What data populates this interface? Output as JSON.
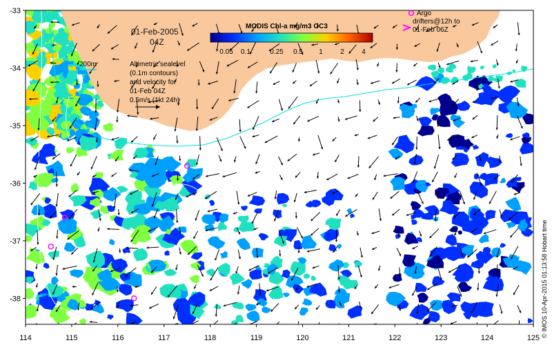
{
  "map": {
    "date_line1": "01-Feb-2005",
    "date_line2": "04Z",
    "bathy_label": "200m",
    "altimetry_note": [
      "Altimetric sealevel",
      "(0.1m contours)",
      "and velocity for",
      "01-Feb 04Z",
      "0.5m/s (1kt 24h)"
    ],
    "argo_note": [
      "Argo",
      "drifters@12h to",
      "01-Feb 06Z"
    ],
    "credit": "© IMOS 10-Apr-2015 01:13:58 Hobart time",
    "x_ticks": [
      "114",
      "115",
      "116",
      "117",
      "118",
      "119",
      "120",
      "121",
      "122",
      "123",
      "124",
      "125"
    ],
    "y_ticks": [
      "-33",
      "-34",
      "-35",
      "-36",
      "-37",
      "-38"
    ],
    "colorbar": {
      "title": "MODIS Chl-a mg/m3 OC3",
      "labels": [
        "0.05",
        "0.1",
        "0.25",
        "0.5",
        "1",
        "2",
        "4"
      ],
      "colors": [
        "#00008f",
        "#0030ff",
        "#00a0ff",
        "#20e0c0",
        "#80ff40",
        "#ffd000",
        "#ff6000",
        "#b00000"
      ]
    },
    "colors": {
      "land": "#f9c99d",
      "ocean": "#ffffff",
      "isobath": "#00e0e0",
      "contour": "#e0ffe0",
      "argo": "#ff00ff",
      "arrow": "#000000"
    },
    "argo_floats": [
      {
        "lon": 117.5,
        "lat": -35.7
      },
      {
        "lon": 114.85,
        "lat": -36.6
      },
      {
        "lon": 114.55,
        "lat": -37.1
      },
      {
        "lon": 116.35,
        "lat": -38.0
      }
    ],
    "argo_legend_icon": "circle-marker-icon",
    "drifter_legend_icon": "chevron-arrow-icon"
  }
}
